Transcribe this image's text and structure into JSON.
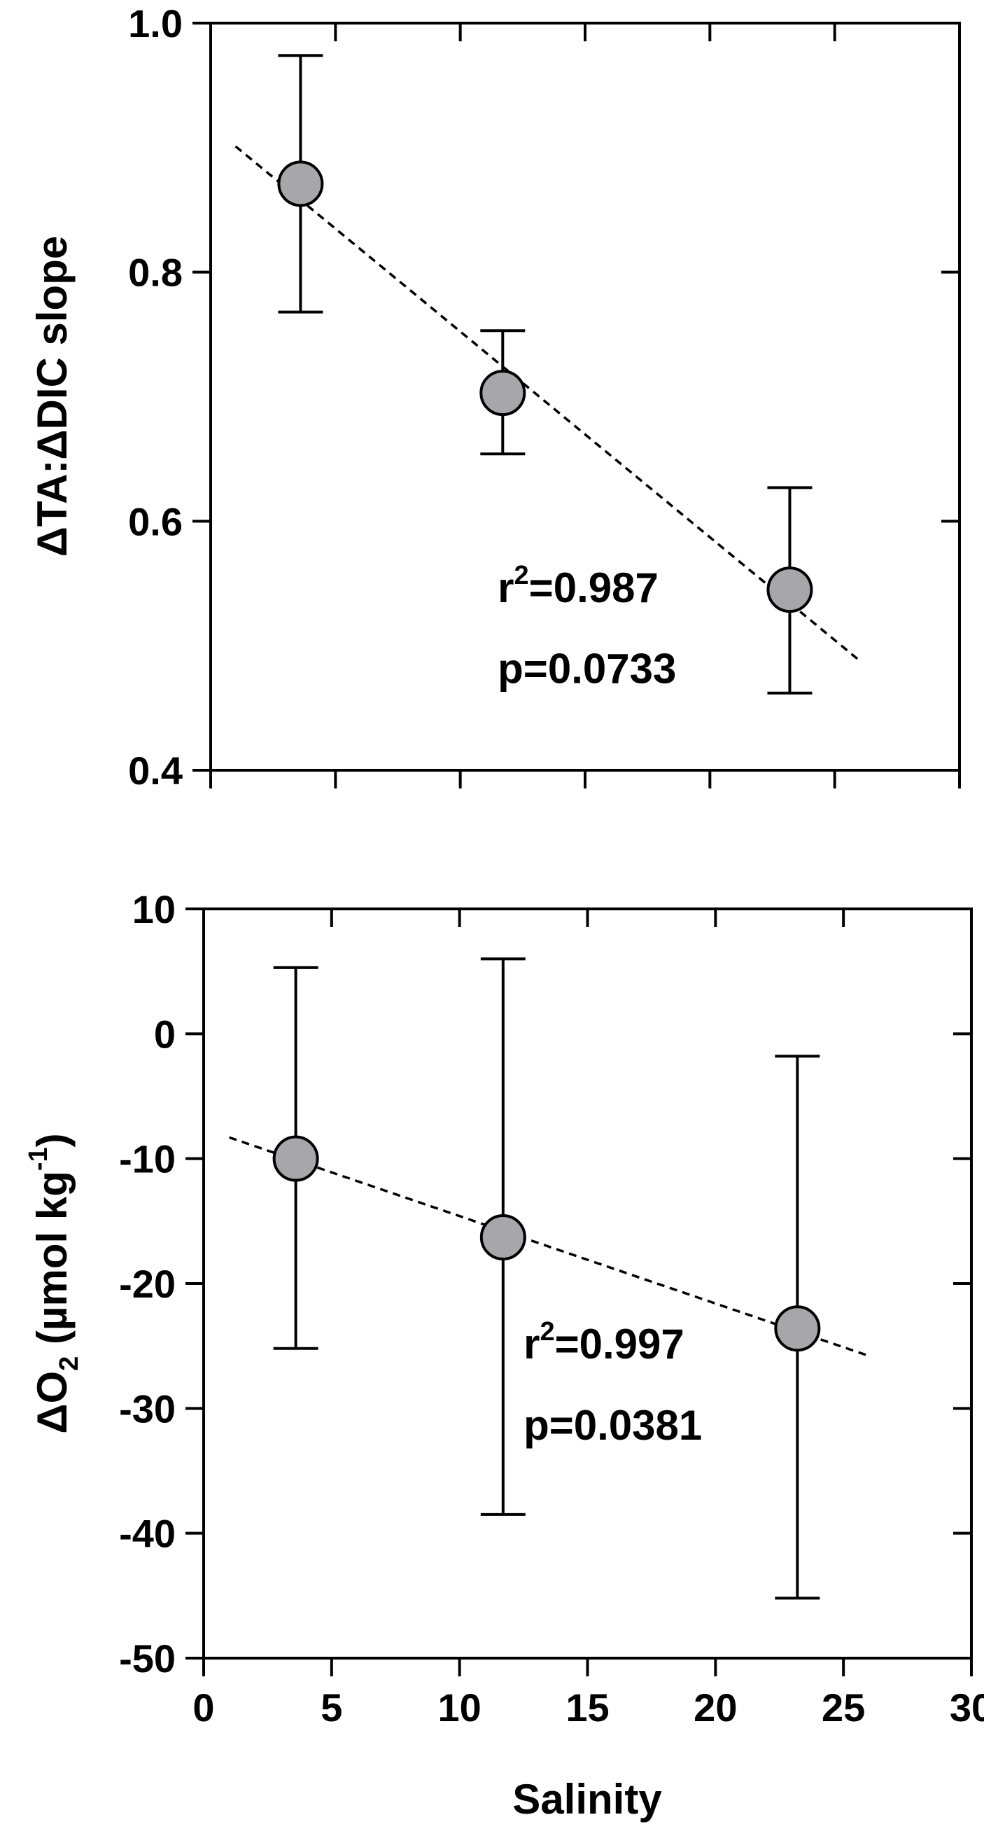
{
  "chart_data": [
    {
      "type": "scatter",
      "title": "",
      "xlabel": "",
      "ylabel": "ΔTA:ΔDIC slope",
      "xlim": [
        0,
        30
      ],
      "ylim": [
        0.4,
        1.0
      ],
      "xticks": [
        0,
        5,
        10,
        15,
        20,
        25,
        30
      ],
      "yticks": [
        0.4,
        0.6,
        0.8,
        1.0
      ],
      "ytick_labels": [
        "0.4",
        "0.6",
        "0.8",
        "1.0"
      ],
      "show_xtick_labels": false,
      "grid": false,
      "series": [
        {
          "x": [
            3.6,
            11.7,
            23.2
          ],
          "y": [
            0.871,
            0.703,
            0.545
          ],
          "yerr_low": [
            0.768,
            0.654,
            0.462
          ],
          "yerr_high": [
            0.974,
            0.753,
            0.627
          ]
        }
      ],
      "fit_line": {
        "x": [
          1.0,
          26.0
        ],
        "y": [
          0.901,
          0.488
        ]
      },
      "annotations": [
        {
          "base": "r",
          "sup": "2",
          "rest": "=0.987",
          "x": 11.5,
          "y": 0.535
        },
        {
          "base": "p=0.0733",
          "sup": "",
          "rest": "",
          "x": 11.5,
          "y": 0.47
        }
      ],
      "colors": {
        "marker_fill": "#a7a7ab",
        "marker_edge": "#000000"
      }
    },
    {
      "type": "scatter",
      "title": "",
      "xlabel": "Salinity",
      "ylabel_parts": {
        "a": "ΔO",
        "sub": "2",
        "b": " (µmol kg",
        "sup": "-1",
        "c": ")"
      },
      "xlim": [
        0,
        30
      ],
      "ylim": [
        -50,
        10
      ],
      "xticks": [
        0,
        5,
        10,
        15,
        20,
        25,
        30
      ],
      "xtick_labels": [
        "0",
        "5",
        "10",
        "15",
        "20",
        "25",
        "30"
      ],
      "yticks": [
        -50,
        -40,
        -30,
        -20,
        -10,
        0,
        10
      ],
      "ytick_labels": [
        "-50",
        "-40",
        "-30",
        "-20",
        "-10",
        "0",
        "10"
      ],
      "show_xtick_labels": true,
      "grid": false,
      "series": [
        {
          "x": [
            3.6,
            11.7,
            23.2
          ],
          "y": [
            -10.0,
            -16.3,
            -23.6
          ],
          "yerr_low": [
            -25.2,
            -38.5,
            -45.2
          ],
          "yerr_high": [
            5.3,
            6.0,
            -1.8
          ]
        }
      ],
      "fit_line": {
        "x": [
          1.0,
          26.0
        ],
        "y": [
          -8.3,
          -25.8
        ]
      },
      "annotations": [
        {
          "base": "r",
          "sup": "2",
          "rest": "=0.997",
          "x": 12.5,
          "y": -26.0
        },
        {
          "base": "p=0.0381",
          "sup": "",
          "rest": "",
          "x": 12.5,
          "y": -32.5
        }
      ],
      "colors": {
        "marker_fill": "#a7a7ab",
        "marker_edge": "#000000"
      }
    }
  ]
}
